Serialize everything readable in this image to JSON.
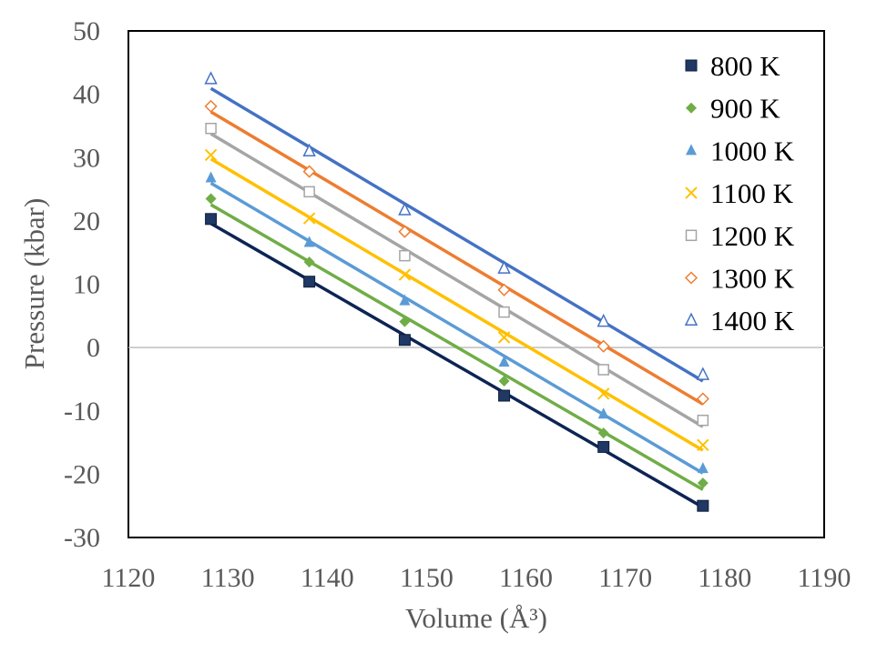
{
  "chart_data": {
    "type": "scatter",
    "title": "",
    "xlabel": "Volume (Å³)",
    "ylabel": "Pressure (kbar)",
    "xlim": [
      1120,
      1190
    ],
    "ylim": [
      -30,
      50
    ],
    "x_ticks": [
      "1120",
      "1130",
      "1140",
      "1150",
      "1160",
      "1170",
      "1180",
      "1190"
    ],
    "y_ticks": [
      "-30",
      "-20",
      "-10",
      "0",
      "10",
      "20",
      "30",
      "40",
      "50"
    ],
    "grid": false,
    "zero_line": true,
    "legend_position": "top-right",
    "trendlines": "linear",
    "x": [
      1128.3,
      1138.2,
      1147.8,
      1157.8,
      1167.8,
      1177.8
    ],
    "series": [
      {
        "name": "800 K",
        "marker": "square-filled",
        "color": "#1f3864",
        "line_color": "#0d2454",
        "values": [
          20.3,
          10.4,
          1.2,
          -7.6,
          -15.7,
          -25.0
        ]
      },
      {
        "name": "900 K",
        "marker": "diamond-filled",
        "color": "#70ad47",
        "line_color": "#70ad47",
        "values": [
          23.5,
          13.5,
          4.1,
          -5.3,
          -13.5,
          -21.4
        ]
      },
      {
        "name": "1000 K",
        "marker": "triangle-filled",
        "color": "#5b9bd5",
        "line_color": "#5b9bd5",
        "values": [
          26.8,
          16.6,
          7.4,
          -2.3,
          -10.5,
          -19.1
        ]
      },
      {
        "name": "1100 K",
        "marker": "x",
        "color": "#ffc000",
        "line_color": "#ffc000",
        "values": [
          30.4,
          20.4,
          11.5,
          1.6,
          -7.3,
          -15.4
        ]
      },
      {
        "name": "1200 K",
        "marker": "square-open",
        "color": "#a5a5a5",
        "line_color": "#a5a5a5",
        "values": [
          34.6,
          24.6,
          14.5,
          5.6,
          -3.5,
          -11.5
        ]
      },
      {
        "name": "1300 K",
        "marker": "diamond-open",
        "color": "#ed7d31",
        "line_color": "#ed7d31",
        "values": [
          38.1,
          27.8,
          18.3,
          9.1,
          0.2,
          -8.1
        ]
      },
      {
        "name": "1400 K",
        "marker": "triangle-open",
        "color": "#4472c4",
        "line_color": "#4472c4",
        "values": [
          42.4,
          31.0,
          21.7,
          12.5,
          4.1,
          -4.3
        ]
      }
    ]
  }
}
